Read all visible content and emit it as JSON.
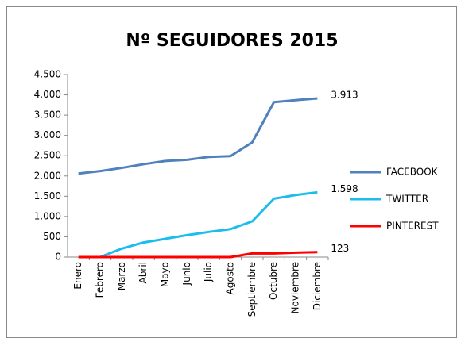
{
  "chart_data": {
    "type": "line",
    "title": "Nº SEGUIDORES 2015",
    "categories": [
      "Enero",
      "Febrero",
      "Marzo",
      "Abril",
      "Mayo",
      "Junio",
      "Julio",
      "Agosto",
      "Septiembre",
      "Octubre",
      "Noviembre",
      "Diciembre"
    ],
    "series": [
      {
        "name": "FACEBOOK",
        "color": "#4f81bd",
        "values": [
          2060,
          2120,
          2200,
          2290,
          2370,
          2400,
          2470,
          2490,
          2830,
          3820,
          3870,
          3913
        ],
        "value_labels": [
          null,
          null,
          null,
          null,
          null,
          null,
          null,
          null,
          null,
          null,
          null,
          "3.913"
        ]
      },
      {
        "name": "TWITTER",
        "color": "#1cbcee",
        "values": [
          null,
          0,
          210,
          360,
          450,
          540,
          620,
          690,
          880,
          1440,
          1530,
          1598
        ],
        "value_labels": [
          null,
          null,
          null,
          null,
          null,
          null,
          null,
          null,
          null,
          null,
          null,
          "1.598"
        ]
      },
      {
        "name": "PINTEREST",
        "color": "#ff0000",
        "values": [
          0,
          0,
          0,
          0,
          0,
          0,
          0,
          0,
          90,
          90,
          110,
          123
        ],
        "value_labels": [
          null,
          null,
          null,
          null,
          null,
          null,
          null,
          null,
          null,
          null,
          null,
          "123"
        ]
      }
    ],
    "ylim": [
      0,
      4500
    ],
    "yticks": [
      0,
      500,
      {
        "value": 1000,
        "label": "1.000"
      },
      {
        "value": 1500,
        "label": "1.500"
      },
      {
        "value": 2000,
        "label": "2.000"
      },
      {
        "value": 2500,
        "label": "2.500"
      },
      {
        "value": 3000,
        "label": "3.000"
      },
      {
        "value": 3500,
        "label": "3.500"
      },
      {
        "value": 4000,
        "label": "4.000"
      },
      {
        "value": 4500,
        "label": "4.500"
      }
    ],
    "grid": false,
    "legend": "right"
  }
}
